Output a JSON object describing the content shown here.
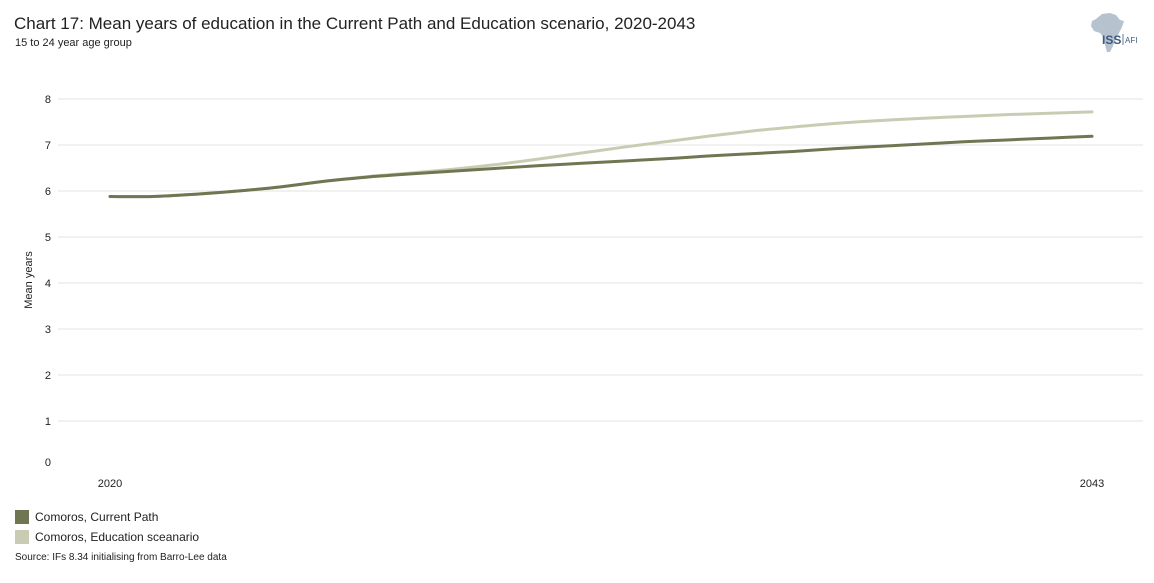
{
  "header": {
    "title": "Chart 17: Mean years of education in the Current Path and Education scenario, 2020-2043",
    "subtitle": "15 to 24 year age group"
  },
  "logo": {
    "primary_text": "ISS",
    "secondary_text": "AFI",
    "icon": "africa-map-icon",
    "color": "#b7c2cf",
    "text_color": "#3d5a80"
  },
  "chart_data": {
    "type": "line",
    "ylabel": "Mean years",
    "xlabel": "",
    "x_range": [
      2020,
      2043
    ],
    "x_tick_labels": [
      "2020",
      "2043"
    ],
    "ylim": [
      0,
      8
    ],
    "y_ticks": [
      0,
      1,
      2,
      3,
      4,
      5,
      6,
      7,
      8
    ],
    "grid": true,
    "legend_position": "bottom-left",
    "series": [
      {
        "name": "Comoros, Current Path",
        "color": "#717652",
        "x": [
          2020,
          2021,
          2022,
          2023,
          2024,
          2025,
          2026,
          2027,
          2028,
          2029,
          2030,
          2031,
          2032,
          2033,
          2034,
          2035,
          2036,
          2037,
          2038,
          2039,
          2040,
          2041,
          2042,
          2043
        ],
        "values": [
          5.88,
          5.88,
          5.93,
          6.0,
          6.09,
          6.21,
          6.3,
          6.37,
          6.43,
          6.49,
          6.55,
          6.6,
          6.65,
          6.7,
          6.76,
          6.81,
          6.86,
          6.92,
          6.97,
          7.02,
          7.07,
          7.11,
          7.15,
          7.19
        ]
      },
      {
        "name": "Comoros, Education sceanario",
        "color": "#c9ccb3",
        "x": [
          2020,
          2021,
          2022,
          2023,
          2024,
          2025,
          2026,
          2027,
          2028,
          2029,
          2030,
          2031,
          2032,
          2033,
          2034,
          2035,
          2036,
          2037,
          2038,
          2039,
          2040,
          2041,
          2042,
          2043
        ],
        "values": [
          5.88,
          5.88,
          5.93,
          6.0,
          6.09,
          6.21,
          6.31,
          6.39,
          6.47,
          6.57,
          6.69,
          6.82,
          6.95,
          7.07,
          7.19,
          7.3,
          7.39,
          7.47,
          7.53,
          7.58,
          7.62,
          7.66,
          7.69,
          7.72
        ]
      }
    ]
  },
  "source": "Source: IFs 8.34 initialising from Barro-Lee data"
}
